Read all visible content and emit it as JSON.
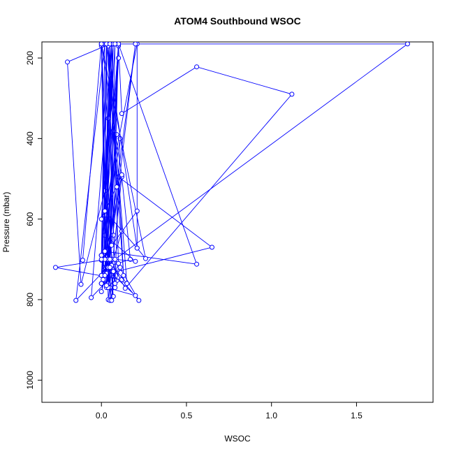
{
  "chart_data": {
    "type": "line",
    "title": "ATOM4 Southbound WSOC",
    "xlabel": "WSOC",
    "ylabel": "Pressure (mbar)",
    "xlim": [
      -0.35,
      1.95
    ],
    "ylim": [
      1055,
      160
    ],
    "x_ticks": [
      "0.0",
      "0.5",
      "1.0",
      "1.5"
    ],
    "y_ticks": [
      "200",
      "400",
      "600",
      "800",
      "1000"
    ],
    "series_color": "#0000ff",
    "grid": false,
    "legend": "none",
    "series": [
      {
        "x": [
          0.05,
          -0.2,
          -0.12,
          0.02,
          0.07,
          0.04,
          0.03,
          0.1,
          0.12,
          0.56,
          1.12,
          0.14,
          0.05,
          0.07,
          0.02,
          0.12,
          0.0,
          0.03,
          0.09,
          0.0,
          0.65,
          0.1,
          0.13,
          0.07,
          0.04,
          0.06,
          0.0,
          0.04,
          0.12,
          0.17,
          0.02,
          0.2,
          0.03,
          0.0,
          0.06,
          0.1,
          0.05,
          0.12,
          -0.27,
          0.0,
          0.02,
          -0.15,
          0.08,
          0.22,
          0.0,
          0.04,
          0.03,
          0.0
        ],
        "y": [
          165,
          210,
          762,
          530,
          165,
          350,
          700,
          166,
          338,
          222,
          290,
          772,
          700,
          792,
          720,
          490,
          165,
          760,
          390,
          740,
          670,
          495,
          740,
          380,
          760,
          700,
          170,
          800,
          495,
          700,
          720,
          790,
          770,
          690,
          165,
          710,
          770,
          750,
          720,
          702,
          165,
          802,
          700,
          802,
          690,
          760,
          695,
          760
        ]
      },
      {
        "x": [
          -0.11,
          0.0,
          0.06,
          0.04,
          0.1,
          0.02,
          0.05,
          1.8,
          0.08,
          0.2,
          0.02,
          0.11,
          0.08,
          0.04,
          0.15,
          0.06,
          0.12,
          0.03,
          0.02,
          0.1,
          0.05,
          0.05,
          0.11,
          -0.06,
          0.06,
          0.07,
          0.1,
          0.03,
          0.0,
          0.04,
          0.03,
          0.04,
          0.06,
          0.07,
          0.08,
          0.03
        ],
        "y": [
          702,
          165,
          700,
          770,
          200,
          735,
          165,
          165,
          700,
          705,
          640,
          400,
          760,
          170,
          760,
          715,
          630,
          165,
          590,
          170,
          700,
          802,
          720,
          795,
          165,
          640,
          165,
          735,
          780,
          700,
          165,
          720,
          802,
          730,
          770,
          700
        ]
      },
      {
        "x": [
          0.0,
          0.03,
          0.21,
          0.21,
          0.02,
          0.21,
          0.26,
          0.0,
          0.02,
          0.56,
          0.1,
          0.0,
          0.06,
          0.09,
          0.04,
          0.0,
          0.01,
          0.05,
          0.06,
          0.0,
          0.07,
          0.02,
          0.12,
          0.0,
          0.07,
          0.02,
          0.2,
          0.05,
          0.03,
          0.05,
          0.08,
          0.0,
          0.21
        ],
        "y": [
          690,
          165,
          672,
          165,
          580,
          672,
          698,
          165,
          680,
          712,
          165,
          760,
          165,
          520,
          700,
          760,
          750,
          165,
          665,
          740,
          165,
          700,
          490,
          600,
          165,
          740,
          165,
          700,
          765,
          720,
          165,
          700,
          580
        ]
      }
    ]
  }
}
